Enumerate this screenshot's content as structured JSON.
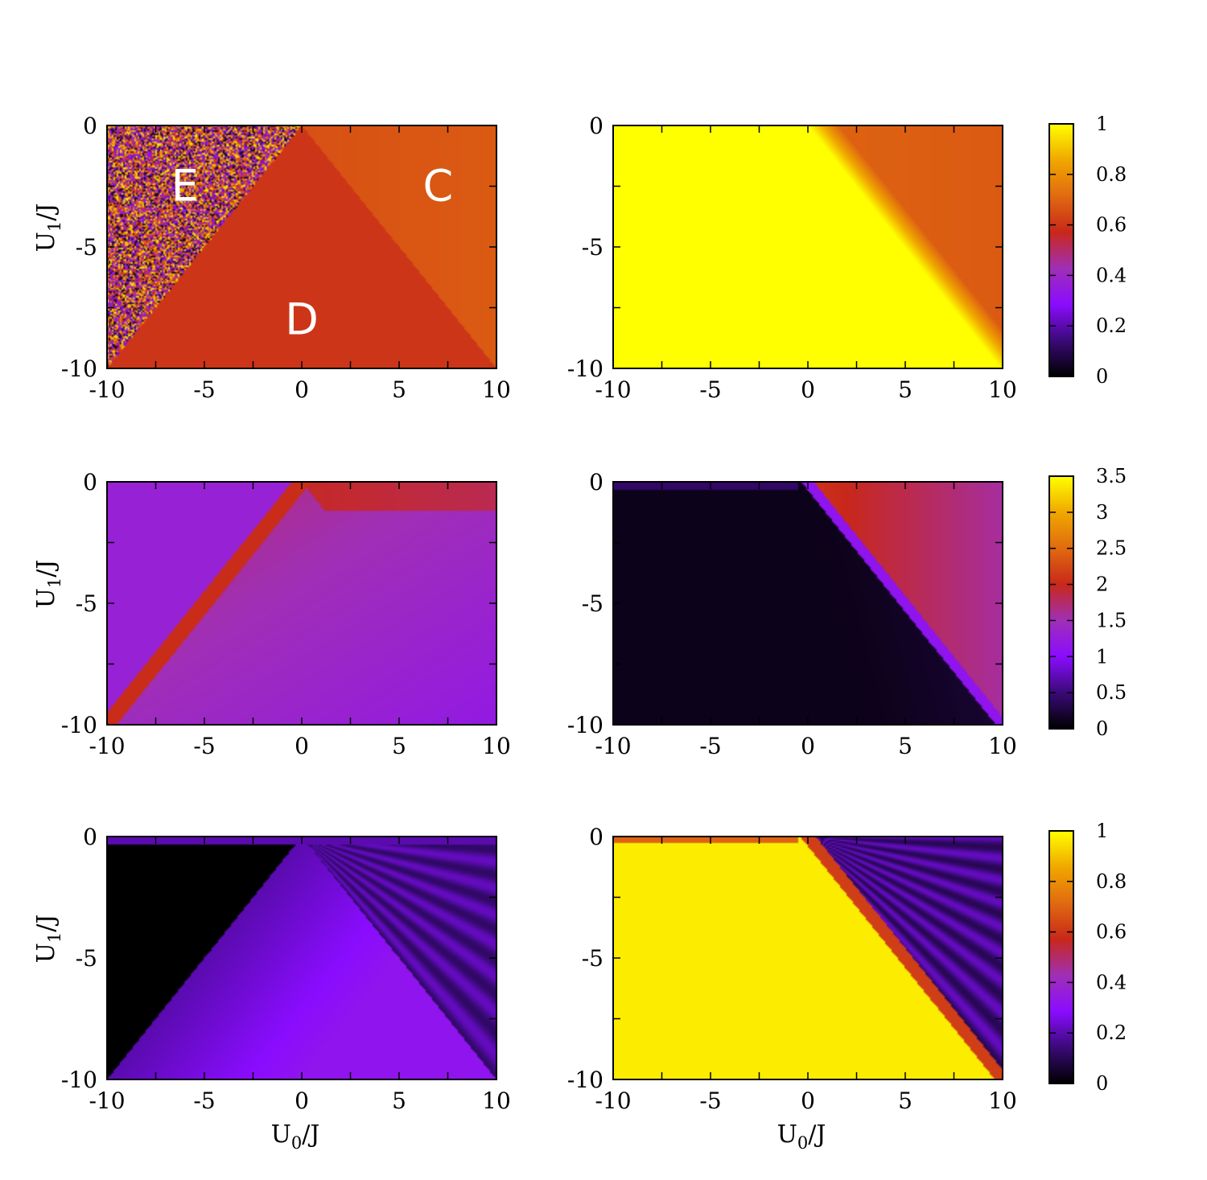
{
  "chart_data": [
    {
      "type": "heatmap",
      "panel": "row1-left",
      "xlabel": "",
      "ylabel": "U1/J",
      "xlim": [
        -10,
        10
      ],
      "ylim": [
        -10,
        0
      ],
      "xticks": [
        "-10",
        "-5",
        "0",
        "5",
        "10"
      ],
      "yticks": [
        "-10",
        "-5",
        "0"
      ],
      "pattern": "phase-regions",
      "annotations": [
        {
          "text": "E",
          "x": -6,
          "y": -2.5
        },
        {
          "text": "C",
          "x": 7,
          "y": -2.5
        },
        {
          "text": "D",
          "x": 0,
          "y": -8
        }
      ]
    },
    {
      "type": "heatmap",
      "panel": "row1-right",
      "xlabel": "",
      "ylabel": "",
      "xlim": [
        -10,
        10
      ],
      "ylim": [
        -10,
        0
      ],
      "xticks": [
        "-10",
        "-5",
        "0",
        "5",
        "10"
      ],
      "yticks": [
        "-10",
        "-5",
        "0"
      ],
      "pattern": "yellow-wedge"
    },
    {
      "type": "heatmap",
      "panel": "row2-left",
      "xlabel": "",
      "ylabel": "U1/J",
      "xlim": [
        -10,
        10
      ],
      "ylim": [
        -10,
        0
      ],
      "xticks": [
        "-10",
        "-5",
        "0",
        "5",
        "10"
      ],
      "yticks": [
        "-10",
        "-5",
        "0"
      ],
      "pattern": "purple-orange-line"
    },
    {
      "type": "heatmap",
      "panel": "row2-right",
      "xlabel": "",
      "ylabel": "",
      "xlim": [
        -10,
        10
      ],
      "ylim": [
        -10,
        0
      ],
      "xticks": [
        "-10",
        "-5",
        "0",
        "5",
        "10"
      ],
      "yticks": [
        "-10",
        "-5",
        "0"
      ],
      "pattern": "dark-with-diagonal"
    },
    {
      "type": "heatmap",
      "panel": "row3-left",
      "xlabel": "U0/J",
      "ylabel": "U1/J",
      "xlim": [
        -10,
        10
      ],
      "ylim": [
        -10,
        0
      ],
      "xticks": [
        "-10",
        "-5",
        "0",
        "5",
        "10"
      ],
      "yticks": [
        "-10",
        "-5",
        "0"
      ],
      "pattern": "dark-purple-fan"
    },
    {
      "type": "heatmap",
      "panel": "row3-right",
      "xlabel": "U0/J",
      "ylabel": "",
      "xlim": [
        -10,
        10
      ],
      "ylim": [
        -10,
        0
      ],
      "xticks": [
        "-10",
        "-5",
        "0",
        "5",
        "10"
      ],
      "yticks": [
        "-10",
        "-5",
        "0"
      ],
      "pattern": "yellow-with-fan"
    }
  ],
  "colorbars": [
    {
      "ticks": [
        "0",
        "0.2",
        "0.4",
        "0.6",
        "0.8",
        "1"
      ],
      "range": [
        0,
        1
      ]
    },
    {
      "ticks": [
        "0",
        "0.5",
        "1",
        "1.5",
        "2",
        "2.5",
        "3",
        "3.5"
      ],
      "range": [
        0,
        3.5
      ]
    },
    {
      "ticks": [
        "0",
        "0.2",
        "0.4",
        "0.6",
        "0.8",
        "1"
      ],
      "range": [
        0,
        1
      ]
    }
  ],
  "colormap": [
    "#000000",
    "#3a0a78",
    "#8a0cff",
    "#a02fb6",
    "#c8281a",
    "#e06a10",
    "#f0a800",
    "#ffff00"
  ],
  "labels": {
    "u1_main": "U",
    "u1_sub": "1",
    "u1_rest": "/J",
    "u0_main": "U",
    "u0_sub": "0",
    "u0_rest": "/J"
  }
}
